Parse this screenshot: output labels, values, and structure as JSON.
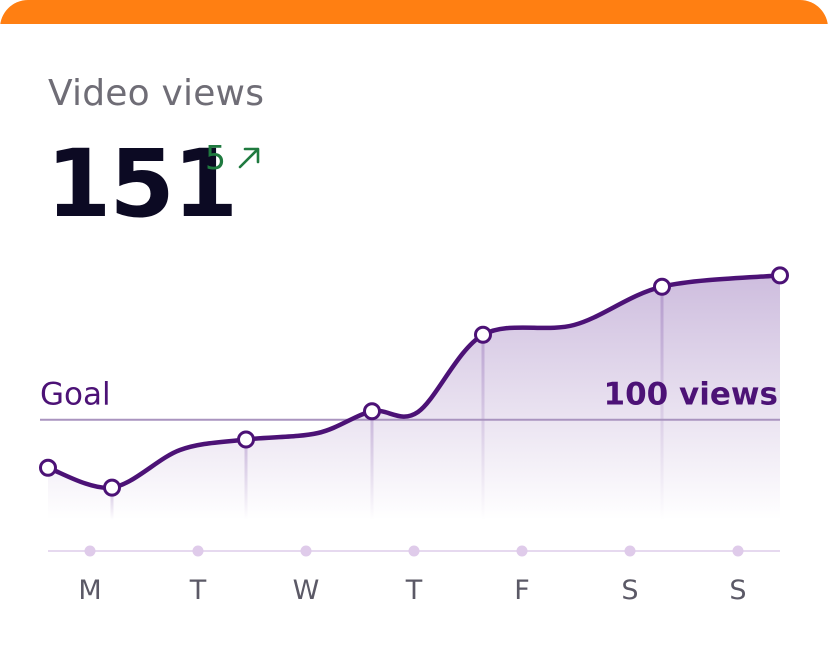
{
  "card": {
    "title": "Video views",
    "value": "151",
    "delta": "5",
    "delta_direction": "up",
    "accent_color": "#ff7f12",
    "line_color": "#4c1276",
    "delta_color": "#1f7a3f"
  },
  "chart_data": {
    "type": "area",
    "title": "",
    "xlabel": "",
    "ylabel": "",
    "categories": [
      "M",
      "T",
      "W",
      "T",
      "F",
      "S",
      "S"
    ],
    "series": [
      {
        "values": [
          83,
          76,
          93,
          103,
          130,
          147,
          151
        ]
      }
    ],
    "goal": {
      "label": "Goal",
      "value": 100,
      "value_label": "100 views"
    },
    "ylim": [
      0,
      160
    ],
    "grid": false,
    "legend": "none"
  }
}
